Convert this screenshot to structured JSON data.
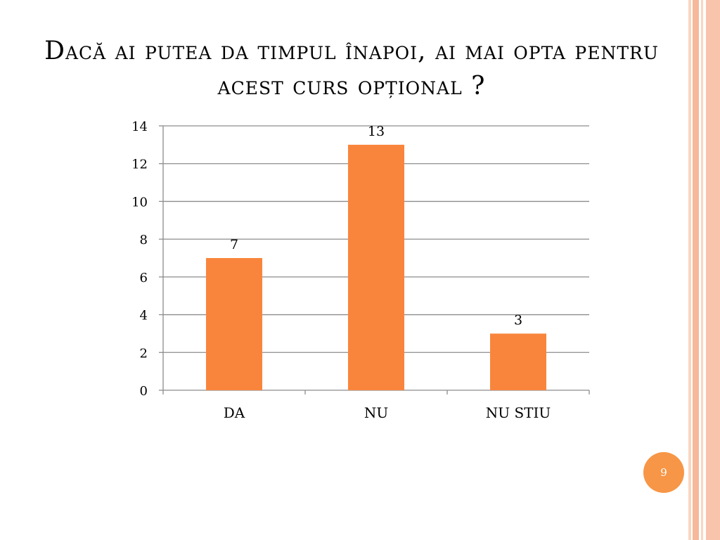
{
  "slide": {
    "title": "Dacă ai putea da timpul înapoi, ai mai opta pentru acest curs opțional ?",
    "page_number": "9"
  },
  "colors": {
    "bar": "#f9853c",
    "accent": "#f79646",
    "frame_stripes": [
      "#fbd5c2",
      "#f6b79b",
      "#fbd5c2",
      "#f8c4ab"
    ]
  },
  "chart_data": {
    "type": "bar",
    "categories": [
      "DA",
      "NU",
      "NU STIU"
    ],
    "values": [
      7,
      13,
      3
    ],
    "data_labels": [
      "7",
      "13",
      "3"
    ],
    "title": "",
    "xlabel": "",
    "ylabel": "",
    "ylim": [
      0,
      14
    ],
    "yticks": [
      0,
      2,
      4,
      6,
      8,
      10,
      12,
      14
    ],
    "grid": true,
    "legend": "none"
  }
}
